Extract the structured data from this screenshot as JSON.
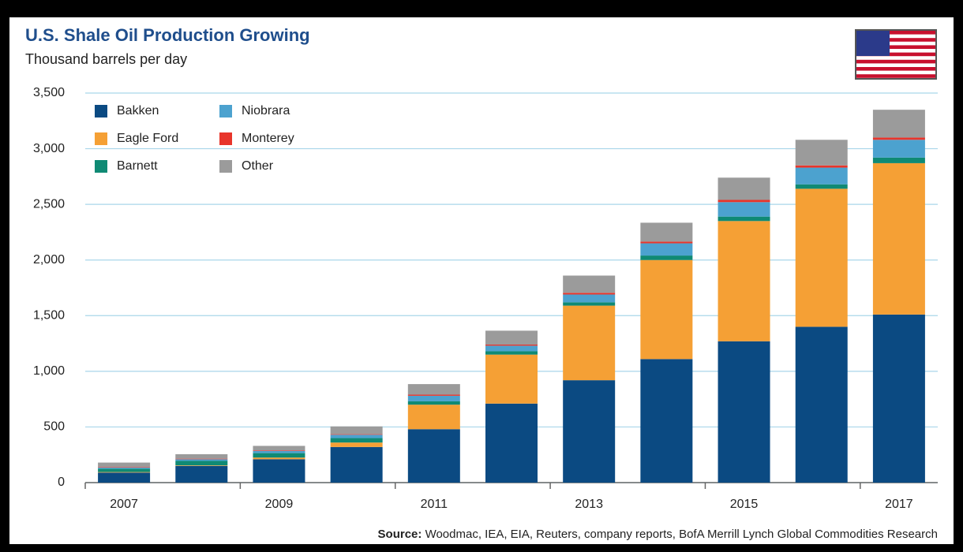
{
  "chart_data": {
    "type": "stacked_bar",
    "title": "U.S. Shale Oil Production Growing",
    "subtitle": "Thousand barrels per day",
    "source_label": "Source:",
    "source": "Woodmac, IEA, EIA, Reuters, company reports, BofA Merrill Lynch Global Commodities Research",
    "categories": [
      "2007",
      null,
      "2009",
      null,
      "2011",
      null,
      "2013",
      null,
      "2015",
      null,
      "2017"
    ],
    "series": [
      {
        "name": "Bakken",
        "color": "#0b4a82",
        "values": [
          90,
          150,
          210,
          320,
          480,
          710,
          920,
          1110,
          1270,
          1400,
          1510
        ]
      },
      {
        "name": "Eagle Ford",
        "color": "#f5a035",
        "values": [
          5,
          5,
          15,
          40,
          220,
          440,
          670,
          890,
          1080,
          1240,
          1360
        ]
      },
      {
        "name": "Barnett",
        "color": "#0f8a74",
        "values": [
          30,
          40,
          40,
          40,
          30,
          30,
          30,
          40,
          40,
          40,
          50
        ]
      },
      {
        "name": "Niobrara",
        "color": "#4ca2cf",
        "values": [
          10,
          15,
          20,
          30,
          50,
          50,
          70,
          110,
          130,
          150,
          160
        ]
      },
      {
        "name": "Monterey",
        "color": "#e8352b",
        "values": [
          5,
          5,
          5,
          5,
          10,
          10,
          15,
          15,
          20,
          20,
          20
        ]
      },
      {
        "name": "Other",
        "color": "#9b9b9b",
        "values": [
          40,
          40,
          40,
          70,
          95,
          125,
          155,
          170,
          200,
          230,
          250
        ]
      }
    ],
    "ylim": [
      0,
      3500
    ],
    "yticks": [
      0,
      500,
      {
        "value": 1000,
        "label": "1,000"
      },
      {
        "value": 1500,
        "label": "1,500"
      },
      {
        "value": 2000,
        "label": "2,000"
      },
      {
        "value": 2500,
        "label": "2,500"
      },
      {
        "value": 3000,
        "label": "3,000"
      },
      {
        "value": 3500,
        "label": "3,500"
      }
    ],
    "grid": true
  }
}
